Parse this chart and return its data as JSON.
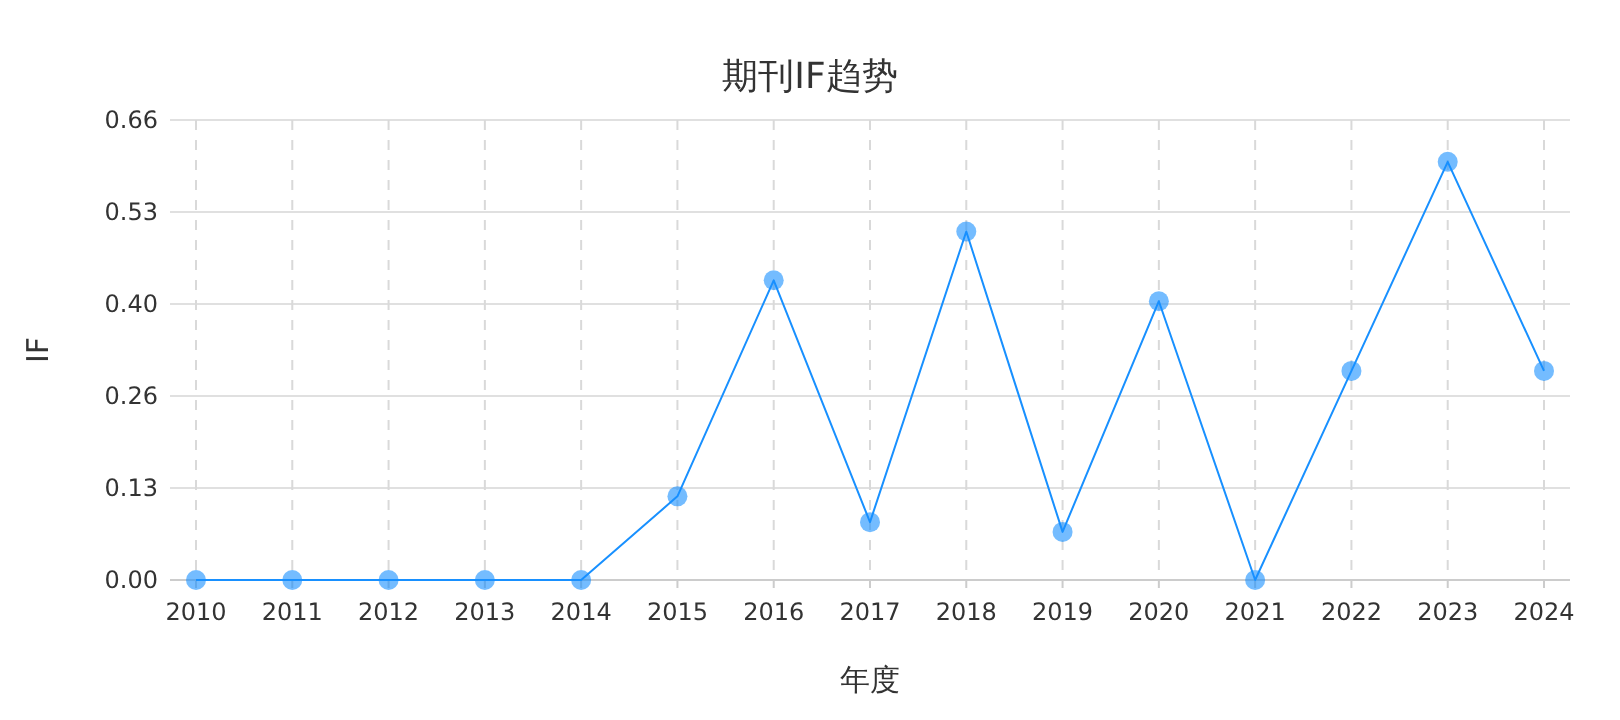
{
  "chart_data": {
    "type": "line",
    "title": "期刊IF趋势",
    "xlabel": "年度",
    "ylabel": "IF",
    "categories": [
      "2010",
      "2011",
      "2012",
      "2013",
      "2014",
      "2015",
      "2016",
      "2017",
      "2018",
      "2019",
      "2020",
      "2021",
      "2022",
      "2023",
      "2024"
    ],
    "series": [
      {
        "color": "#1890ff",
        "values": [
          0,
          0,
          0,
          0,
          0,
          0.12,
          0.43,
          0.083,
          0.5,
          0.069,
          0.4,
          0,
          0.3,
          0.6,
          0.3
        ]
      }
    ],
    "ylim": [
      0,
      0.66
    ],
    "yticks": [
      {
        "value": 0,
        "label": "0.00"
      },
      {
        "value": 0.132,
        "label": "0.13"
      },
      {
        "value": 0.264,
        "label": "0.26"
      },
      {
        "value": 0.396,
        "label": "0.40"
      },
      {
        "value": 0.528,
        "label": "0.53"
      },
      {
        "value": 0.66,
        "label": "0.66"
      }
    ],
    "grid": true,
    "marker": "circle",
    "line_style": "solid"
  }
}
